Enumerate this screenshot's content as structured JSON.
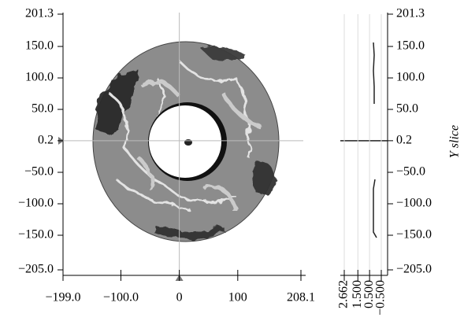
{
  "chart_data": {
    "type": "image",
    "xlim": [
      -199,
      208.1
    ],
    "ylim": [
      -205,
      201.3
    ],
    "xticks": [
      {
        "value": -199,
        "label": "−199.0"
      },
      {
        "value": -100,
        "label": "−100.0"
      },
      0,
      100,
      208.1
    ],
    "yticks": [
      {
        "value": -205,
        "label": "−205.0"
      },
      {
        "value": -150,
        "label": "−150.0"
      },
      {
        "value": -100,
        "label": "−100.0"
      },
      {
        "value": -50,
        "label": "−50.0"
      },
      0.2,
      {
        "value": 50,
        "label": "50.0"
      },
      {
        "value": 100,
        "label": "100.0"
      },
      {
        "value": 150,
        "label": "150.0"
      },
      201.3
    ],
    "marker": {
      "x": 0,
      "y": 0.2
    },
    "slice": {
      "ylabel": "Y slice",
      "xlim": [
        2.662,
        -0.5
      ],
      "xticks": [
        2.662,
        {
          "value": 1.5,
          "label": "1.500"
        },
        {
          "value": 0.5,
          "label": "0.500"
        },
        {
          "value": -0.5,
          "label": "−0.500"
        }
      ]
    }
  }
}
